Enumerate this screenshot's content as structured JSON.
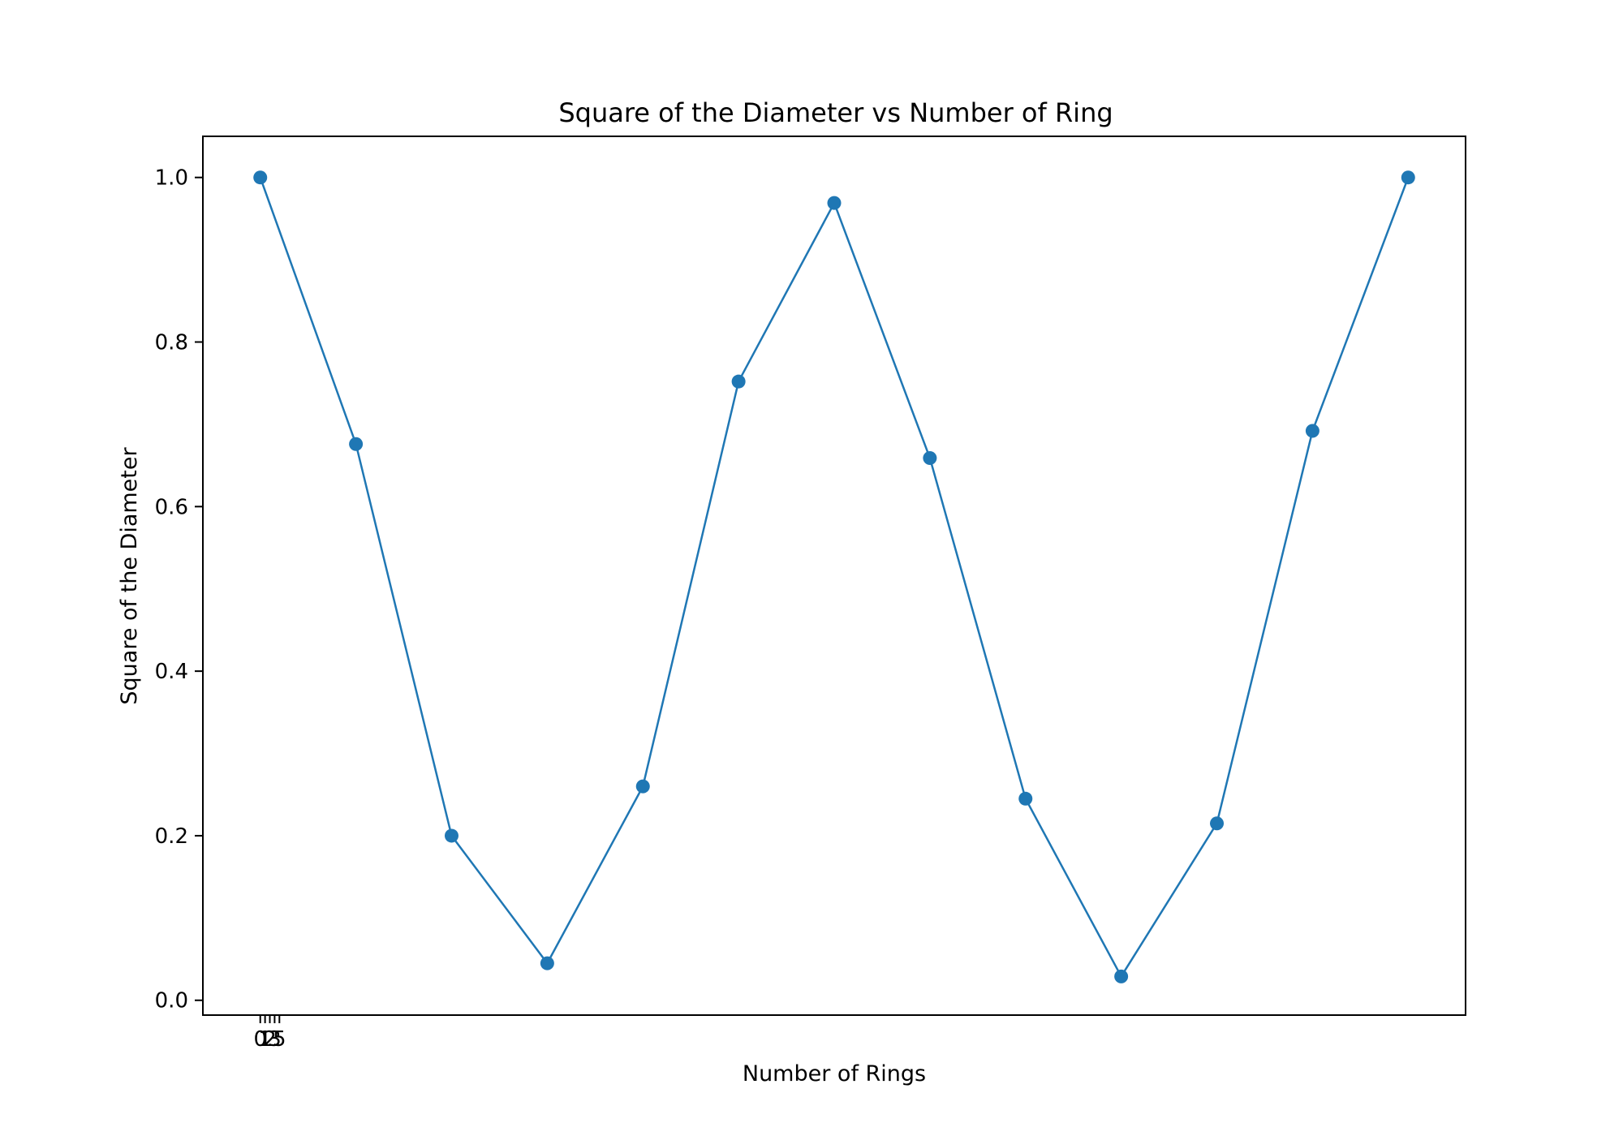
{
  "chart_data": {
    "type": "line",
    "title": "Square of the Diameter vs Number of Ring",
    "xlabel": "Number of Rings",
    "ylabel": "Square of the Diameter",
    "x": [
      0,
      1,
      2,
      3,
      4,
      5,
      6,
      7,
      8,
      9,
      10,
      11,
      12
    ],
    "x_tick_values": [
      0,
      0.05,
      0.1,
      0.15,
      0.2
    ],
    "x_tick_labels": [
      "0",
      "1",
      "2",
      "3",
      "5"
    ],
    "xlim": [
      -0.6,
      12.6
    ],
    "ylim": [
      -0.018,
      1.05
    ],
    "y_ticks": [
      0.0,
      0.2,
      0.4,
      0.6,
      0.8,
      1.0
    ],
    "y_tick_labels": [
      "0.0",
      "0.2",
      "0.4",
      "0.6",
      "0.8",
      "1.0"
    ],
    "series": [
      {
        "name": "Square of the Diameter",
        "values": [
          1.0,
          0.676,
          0.2,
          0.045,
          0.26,
          0.752,
          0.969,
          0.659,
          0.245,
          0.029,
          0.215,
          0.692,
          1.0
        ],
        "color": "#1f77b4",
        "marker": "circle"
      }
    ],
    "grid": false,
    "legend": "none"
  }
}
